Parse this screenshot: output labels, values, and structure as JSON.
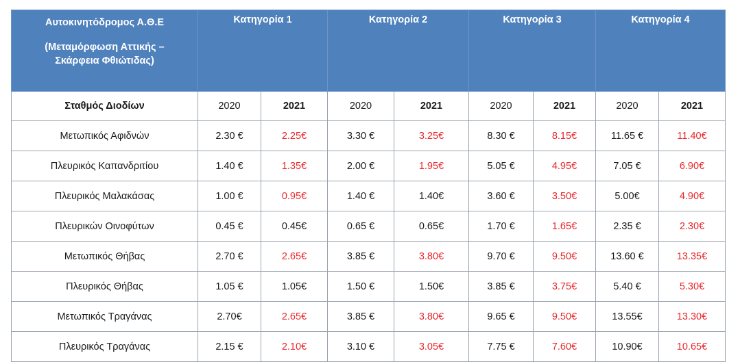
{
  "header": {
    "road_title": "Αυτοκινητόδρομος Α.Θ.Ε",
    "road_subtitle_line1": "(Μεταμόρφωση Αττικής –",
    "road_subtitle_line2": "Σκάρφεια Φθιώτιδας)",
    "categories": [
      "Κατηγορία  1",
      "Κατηγορία 2",
      "Κατηγορία 3",
      "Κατηγορία 4"
    ]
  },
  "subheader": {
    "station_label": "Σταθμός Διοδίων",
    "year_2020": "2020",
    "year_2021": "2021"
  },
  "colors": {
    "header_bg": "#4f81bd",
    "increase_text": "#e8262a"
  },
  "rows": [
    {
      "station": "Μετωπικός Αφιδνών",
      "values": [
        {
          "v2020": "2.30 €",
          "v2021": "2.25€",
          "changed": true
        },
        {
          "v2020": "3.30 €",
          "v2021": "3.25€",
          "changed": true
        },
        {
          "v2020": "8.30 €",
          "v2021": "8.15€",
          "changed": true
        },
        {
          "v2020": "11.65 €",
          "v2021": "11.40€",
          "changed": true
        }
      ]
    },
    {
      "station": "Πλευρικός Καπανδριτίου",
      "values": [
        {
          "v2020": "1.40 €",
          "v2021": "1.35€",
          "changed": true
        },
        {
          "v2020": "2.00 €",
          "v2021": "1.95€",
          "changed": true
        },
        {
          "v2020": "5.05 €",
          "v2021": "4.95€",
          "changed": true
        },
        {
          "v2020": "7.05 €",
          "v2021": "6.90€",
          "changed": true
        }
      ]
    },
    {
      "station": "Πλευρικός Μαλακάσας",
      "values": [
        {
          "v2020": "1.00 €",
          "v2021": "0.95€",
          "changed": true
        },
        {
          "v2020": "1.40 €",
          "v2021": "1.40€",
          "changed": false
        },
        {
          "v2020": "3.60 €",
          "v2021": "3.50€",
          "changed": true
        },
        {
          "v2020": "5.00€",
          "v2021": "4.90€",
          "changed": true
        }
      ]
    },
    {
      "station": "Πλευρικών Οινοφύτων",
      "values": [
        {
          "v2020": "0.45 €",
          "v2021": "0.45€",
          "changed": false
        },
        {
          "v2020": "0.65 €",
          "v2021": "0.65€",
          "changed": false
        },
        {
          "v2020": "1.70 €",
          "v2021": "1.65€",
          "changed": true
        },
        {
          "v2020": "2.35 €",
          "v2021": "2.30€",
          "changed": true
        }
      ]
    },
    {
      "station": "Μετωπικός Θήβας",
      "values": [
        {
          "v2020": "2.70 €",
          "v2021": "2.65€",
          "changed": true
        },
        {
          "v2020": "3.85 €",
          "v2021": "3.80€",
          "changed": true
        },
        {
          "v2020": "9.70 €",
          "v2021": "9.50€",
          "changed": true
        },
        {
          "v2020": "13.60 €",
          "v2021": "13.35€",
          "changed": true
        }
      ]
    },
    {
      "station": "Πλευρικός Θήβας",
      "values": [
        {
          "v2020": "1.05 €",
          "v2021": "1.05€",
          "changed": false
        },
        {
          "v2020": "1.50 €",
          "v2021": "1.50€",
          "changed": false
        },
        {
          "v2020": "3.85 €",
          "v2021": "3.75€",
          "changed": true
        },
        {
          "v2020": "5.40 €",
          "v2021": "5.30€",
          "changed": true
        }
      ]
    },
    {
      "station": "Μετωπικός Τραγάνας",
      "values": [
        {
          "v2020": "2.70€",
          "v2021": "2.65€",
          "changed": true
        },
        {
          "v2020": "3.85 €",
          "v2021": "3.80€",
          "changed": true
        },
        {
          "v2020": "9.65 €",
          "v2021": "9.50€",
          "changed": true
        },
        {
          "v2020": "13.55€",
          "v2021": "13.30€",
          "changed": true
        }
      ]
    },
    {
      "station": "Πλευρικός Τραγάνας",
      "values": [
        {
          "v2020": "2.15 €",
          "v2021": "2.10€",
          "changed": true
        },
        {
          "v2020": "3.10 €",
          "v2021": "3.05€",
          "changed": true
        },
        {
          "v2020": "7.75 €",
          "v2021": "7.60€",
          "changed": true
        },
        {
          "v2020": "10.90€",
          "v2021": "10.65€",
          "changed": true
        }
      ]
    }
  ]
}
